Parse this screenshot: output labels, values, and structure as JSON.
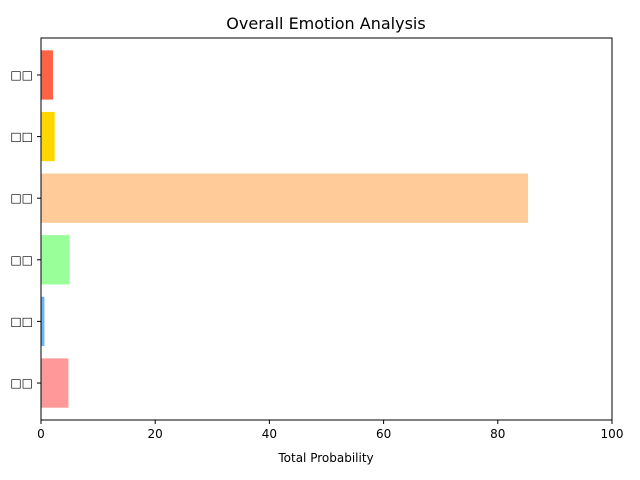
{
  "chart_data": {
    "type": "bar",
    "orientation": "horizontal",
    "title": "Overall Emotion Analysis",
    "xlabel": "Total Probability",
    "ylabel": "",
    "xlim": [
      0,
      100
    ],
    "x_ticks": [
      0,
      20,
      40,
      60,
      80,
      100
    ],
    "x_tick_labels": [
      "0",
      "20",
      "40",
      "60",
      "80",
      "100"
    ],
    "categories": [
      "□□",
      "□□",
      "□□",
      "□□",
      "□□",
      "□□"
    ],
    "values": [
      4.8,
      0.6,
      5.0,
      85.3,
      2.4,
      2.1
    ],
    "colors": [
      "#ff9999",
      "#66b3ff",
      "#99ff99",
      "#ffcc99",
      "#ffd700",
      "#ff6347"
    ],
    "grid": false,
    "legend": "none"
  }
}
